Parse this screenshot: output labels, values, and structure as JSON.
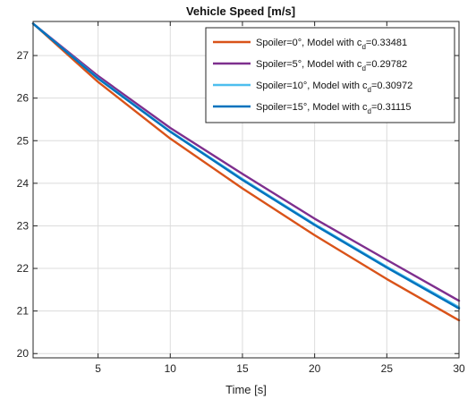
{
  "chart_data": {
    "type": "line",
    "title": "Vehicle Speed [m/s]",
    "xlabel": "Time [s]",
    "ylabel": "",
    "xlim": [
      0.5,
      30
    ],
    "ylim": [
      19.9,
      27.8
    ],
    "xticks": [
      5,
      10,
      15,
      20,
      25,
      30
    ],
    "yticks": [
      20,
      21,
      22,
      23,
      24,
      25,
      26,
      27
    ],
    "xtick_labels": [
      "5",
      "10",
      "15",
      "20",
      "25",
      "30"
    ],
    "ytick_labels": [
      "20",
      "21",
      "22",
      "23",
      "24",
      "25",
      "26",
      "27"
    ],
    "grid": true,
    "legend_position": "top-right",
    "x": [
      0.5,
      5,
      10,
      15,
      20,
      25,
      30
    ],
    "series": [
      {
        "name": "Spoiler=0°, Model with c_d=0.33481",
        "label_main": "Spoiler=0°, Model with c",
        "label_sub": "d",
        "label_value": "=0.33481",
        "color": "#D95319",
        "values": [
          27.75,
          26.38,
          25.05,
          23.88,
          22.78,
          21.75,
          20.78
        ]
      },
      {
        "name": "Spoiler=5°, Model with c_d=0.29782",
        "label_main": "Spoiler=5°, Model with c",
        "label_sub": "d",
        "label_value": "=0.29782",
        "color": "#7E2F8E",
        "values": [
          27.75,
          26.52,
          25.3,
          24.22,
          23.17,
          22.2,
          21.24
        ]
      },
      {
        "name": "Spoiler=10°, Model with c_d=0.30972",
        "label_main": "Spoiler=10°, Model with c",
        "label_sub": "d",
        "label_value": "=0.30972",
        "color": "#4DBEEE",
        "values": [
          27.75,
          26.47,
          25.22,
          24.1,
          23.04,
          22.04,
          21.09
        ]
      },
      {
        "name": "Spoiler=15°, Model with c_d=0.31115",
        "label_main": "Spoiler=15°, Model with c",
        "label_sub": "d",
        "label_value": "=0.31115",
        "color": "#0072BD",
        "values": [
          27.75,
          26.46,
          25.21,
          24.08,
          23.02,
          22.02,
          21.06
        ]
      }
    ]
  }
}
